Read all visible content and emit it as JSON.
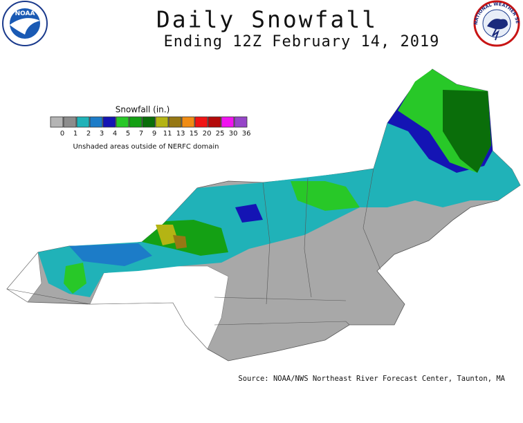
{
  "header": {
    "title": "Daily Snowfall",
    "subtitle": "Ending 12Z February 14, 2019"
  },
  "logos": {
    "left": "NOAA",
    "right": "NATIONAL WEATHER SERVICE"
  },
  "legend": {
    "title": "Snowfall (in.)",
    "items": [
      {
        "label": 0,
        "color": "#b4b4b4"
      },
      {
        "label": 1,
        "color": "#8c8c8c"
      },
      {
        "label": 2,
        "color": "#20b2b8"
      },
      {
        "label": 3,
        "color": "#1c7cc8"
      },
      {
        "label": 4,
        "color": "#1414b4"
      },
      {
        "label": 5,
        "color": "#28c828"
      },
      {
        "label": 7,
        "color": "#14a014"
      },
      {
        "label": 9,
        "color": "#0a6e0a"
      },
      {
        "label": 11,
        "color": "#b4b414"
      },
      {
        "label": 13,
        "color": "#967814"
      },
      {
        "label": 15,
        "color": "#f08c14"
      },
      {
        "label": 20,
        "color": "#f01414"
      },
      {
        "label": 25,
        "color": "#b40a0a"
      },
      {
        "label": 30,
        "color": "#f014f0"
      },
      {
        "label": 36,
        "color": "#9646c8"
      }
    ],
    "note": "Unshaded areas outside of NERFC domain"
  },
  "source": "Source: NOAA/NWS Northeast River Forecast Center, Taunton, MA"
}
